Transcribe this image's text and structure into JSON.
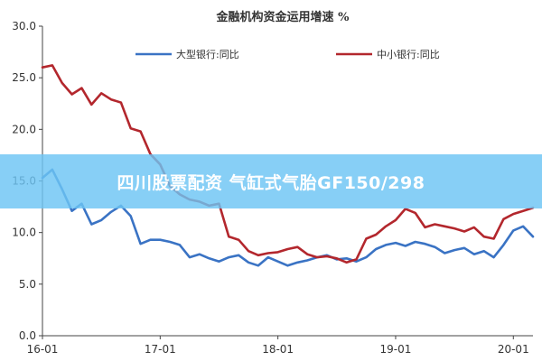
{
  "chart_data": {
    "type": "line",
    "title": "金融机构资金运用增速 %",
    "xlabel": "",
    "ylabel": "",
    "ylim": [
      0,
      30
    ],
    "yticks": [
      0,
      5,
      10,
      15,
      20,
      25,
      30
    ],
    "ytick_labels": [
      "0.0",
      "5.0",
      "10.0",
      "15.0",
      "20.0",
      "25.0",
      "30.0"
    ],
    "xlim": [
      0,
      50
    ],
    "xticks": [
      0,
      12,
      24,
      36,
      48
    ],
    "xtick_labels": [
      "16-01",
      "17-01",
      "18-01",
      "19-01",
      "20-01"
    ],
    "grid": false,
    "legend_position": "top",
    "series": [
      {
        "name": "大型银行:同比",
        "color": "#3a73c4",
        "x": [
          0,
          1,
          2,
          3,
          4,
          5,
          6,
          7,
          8,
          9,
          10,
          11,
          12,
          13,
          14,
          15,
          16,
          17,
          18,
          19,
          20,
          21,
          22,
          23,
          24,
          25,
          26,
          27,
          28,
          29,
          30,
          31,
          32,
          33,
          34,
          35,
          36,
          37,
          38,
          39,
          40,
          41,
          42,
          43,
          44,
          45,
          46,
          47,
          48,
          49,
          50
        ],
        "y": [
          15.3,
          16.1,
          14.2,
          12.1,
          12.8,
          10.8,
          11.2,
          12.0,
          12.6,
          11.6,
          8.9,
          9.3,
          9.3,
          9.1,
          8.8,
          7.6,
          7.9,
          7.5,
          7.2,
          7.6,
          7.8,
          7.1,
          6.8,
          7.6,
          7.2,
          6.8,
          7.1,
          7.3,
          7.6,
          7.8,
          7.4,
          7.5,
          7.2,
          7.6,
          8.4,
          8.8,
          9.0,
          8.7,
          9.1,
          8.9,
          8.6,
          8.0,
          8.3,
          8.5,
          7.9,
          8.2,
          7.6,
          8.8,
          10.2,
          10.6,
          9.6
        ]
      },
      {
        "name": "中小银行:同比",
        "color": "#b3272d",
        "x": [
          0,
          1,
          2,
          3,
          4,
          5,
          6,
          7,
          8,
          9,
          10,
          11,
          12,
          13,
          14,
          15,
          16,
          17,
          18,
          19,
          20,
          21,
          22,
          23,
          24,
          25,
          26,
          27,
          28,
          29,
          30,
          31,
          32,
          33,
          34,
          35,
          36,
          37,
          38,
          39,
          40,
          41,
          42,
          43,
          44,
          45,
          46,
          47,
          48,
          49,
          50
        ],
        "y": [
          26.0,
          26.2,
          24.5,
          23.4,
          24.0,
          22.4,
          23.5,
          22.9,
          22.6,
          20.1,
          19.8,
          17.6,
          16.6,
          14.5,
          13.7,
          13.2,
          13.0,
          12.6,
          12.8,
          9.6,
          9.3,
          8.2,
          7.8,
          8.0,
          8.1,
          8.4,
          8.6,
          7.9,
          7.6,
          7.7,
          7.5,
          7.1,
          7.4,
          9.4,
          9.8,
          10.6,
          11.2,
          12.3,
          11.9,
          10.5,
          10.8,
          10.6,
          10.4,
          10.1,
          10.5,
          9.6,
          9.4,
          11.3,
          11.8,
          12.1,
          12.4
        ]
      }
    ]
  },
  "overlay": {
    "banner_text": "四川股票配资 气缸式气胎GF150/298"
  }
}
